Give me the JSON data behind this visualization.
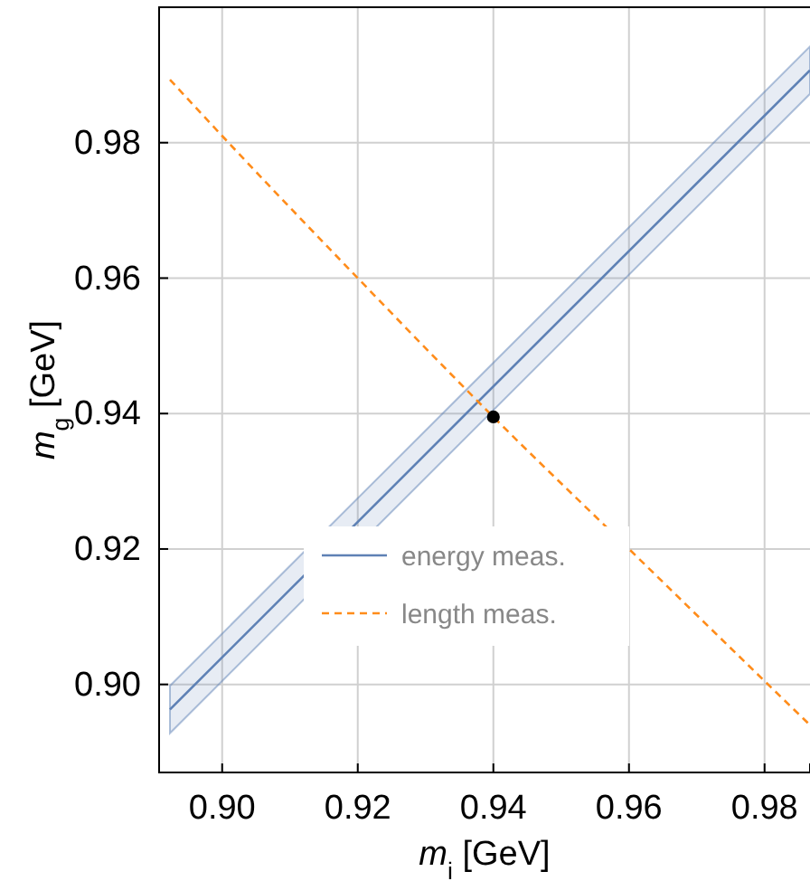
{
  "chart_data": {
    "type": "line",
    "xlabel": "m$_{i}$ [GeV]",
    "ylabel": "m$_{g}$ [GeV]",
    "xlim": [
      0.8907,
      0.9867
    ],
    "ylim": [
      0.887,
      1.0
    ],
    "xticks": [
      {
        "value": 0.9,
        "label": "0.90"
      },
      0.92,
      0.94,
      0.96,
      0.98
    ],
    "yticks": [
      {
        "value": 0.9,
        "label": "0.90"
      },
      0.92,
      0.94,
      0.96,
      0.98
    ],
    "grid": true,
    "legend": "bottom",
    "series": [
      {
        "name": "energy meas.",
        "color": "#5e81b5",
        "line_style": "solid",
        "x": [
          0.8923,
          0.9867
        ],
        "values": [
          0.8963,
          0.9907
        ],
        "lower": [
          0.8928,
          0.9872
        ],
        "upper": [
          0.8998,
          0.9942
        ]
      },
      {
        "name": "length meas.",
        "color": "#ff8c1a",
        "line_style": "dashed",
        "x": [
          0.8923,
          0.9,
          0.92,
          0.94,
          0.96,
          0.98,
          0.9867
        ],
        "values": [
          0.9893,
          0.981,
          0.96,
          0.9395,
          0.92,
          0.9005,
          0.894
        ]
      },
      {
        "type": "scatter",
        "color": "#000000",
        "marker": "circle",
        "x": [
          0.94
        ],
        "values": [
          0.9395
        ]
      }
    ]
  }
}
